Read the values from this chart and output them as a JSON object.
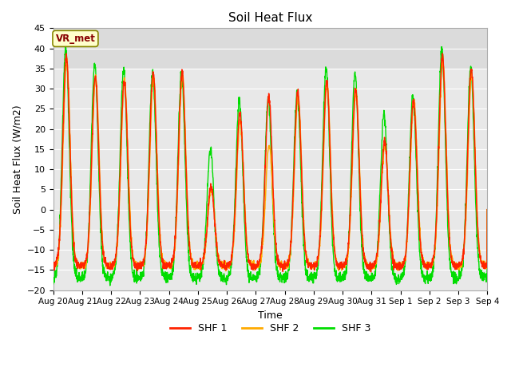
{
  "title": "Soil Heat Flux",
  "xlabel": "Time",
  "ylabel": "Soil Heat Flux (W/m2)",
  "ylim": [
    -20,
    45
  ],
  "yticks": [
    -20,
    -15,
    -10,
    -5,
    0,
    5,
    10,
    15,
    20,
    25,
    30,
    35,
    40,
    45
  ],
  "x_labels": [
    "Aug 20",
    "Aug 21",
    "Aug 22",
    "Aug 23",
    "Aug 24",
    "Aug 25",
    "Aug 26",
    "Aug 27",
    "Aug 28",
    "Aug 29",
    "Aug 30",
    "Aug 31",
    "Sep 1",
    "Sep 2",
    "Sep 3",
    "Sep 4"
  ],
  "colors": {
    "SHF 1": "#ff2200",
    "SHF 2": "#ffaa00",
    "SHF 3": "#00dd00"
  },
  "fig_bg": "#ffffff",
  "plot_bg": "#e8e8e8",
  "annotation_text": "VR_met",
  "annotation_color": "#880000",
  "annotation_bg": "#ffffcc",
  "annotation_edge": "#888800",
  "grid_color": "#ffffff",
  "legend_labels": [
    "SHF 1",
    "SHF 2",
    "SHF 3"
  ],
  "shf1_peaks": [
    38,
    33,
    32,
    34,
    34,
    6,
    24,
    28,
    29,
    32,
    30,
    17,
    27,
    38,
    35
  ],
  "shf2_peaks": [
    37,
    33,
    32,
    33,
    33,
    5,
    22,
    16,
    28,
    31,
    29,
    16,
    27,
    37,
    33
  ],
  "shf3_peaks": [
    40,
    36,
    35,
    34,
    34,
    15,
    27,
    27,
    29,
    35,
    34,
    24,
    28,
    40,
    35
  ],
  "shf1_min": -14,
  "shf2_min": -14,
  "shf3_min": -17,
  "n_days": 15,
  "pts_per_day": 144
}
